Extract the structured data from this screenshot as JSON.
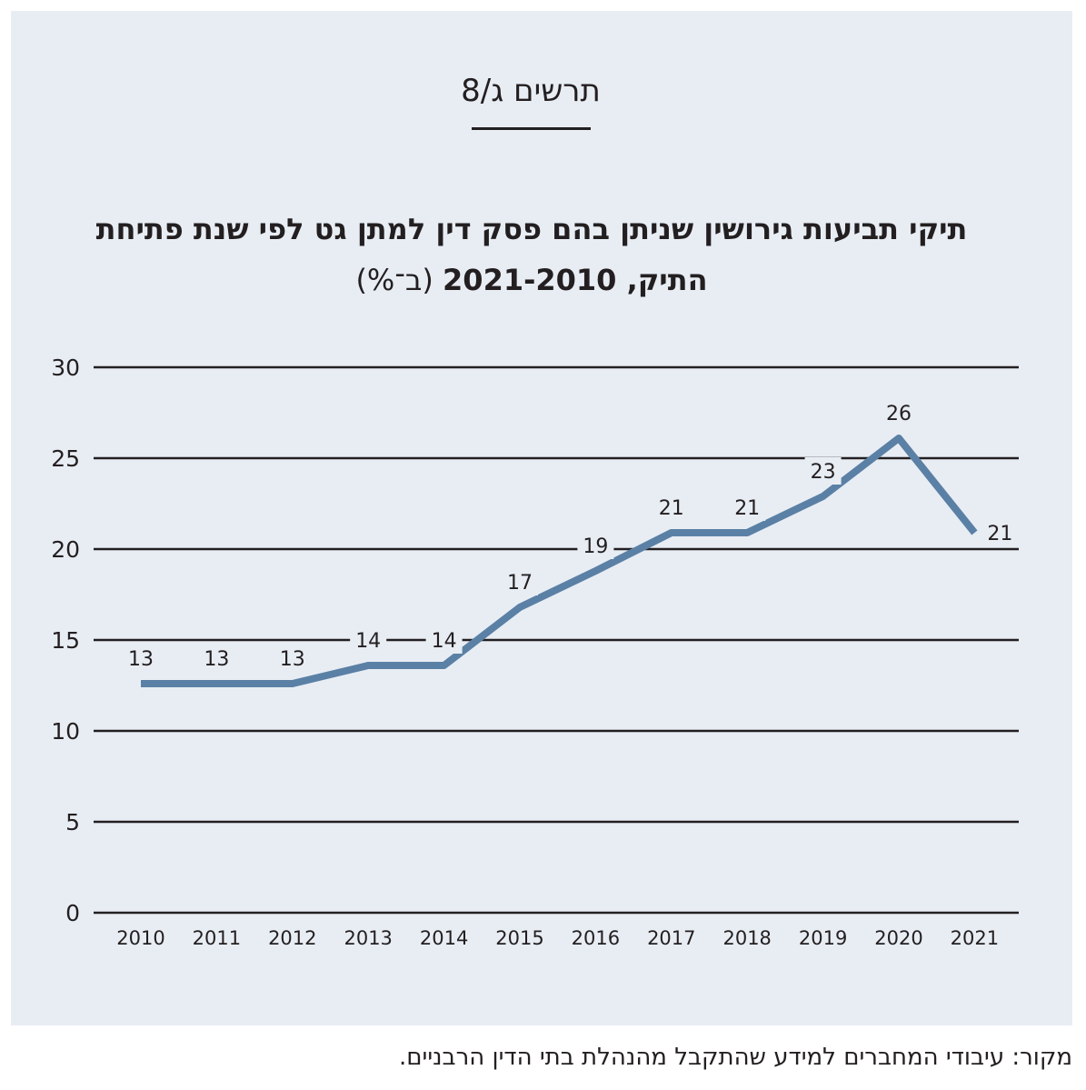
{
  "figure": {
    "label": "תרשים ג/8",
    "title_line1": "תיקי תביעות גירושין שניתן בהם פסק דין למתן גט לפי שנת פתיחת",
    "title_line2_bold": "התיק, 2021-2010",
    "title_line2_unit": "(ב־%)",
    "source": "מקור: עיבודי המחברים למידע שהתקבל מהנהלת בתי הדין הרבניים."
  },
  "chart_data": {
    "type": "line",
    "title": "תיקי תביעות גירושין שניתן בהם פסק דין למתן גט לפי שנת פתיחת התיק, 2021-2010 (ב־%)",
    "xlabel": "",
    "ylabel": "",
    "categories": [
      "2010",
      "2011",
      "2012",
      "2013",
      "2014",
      "2015",
      "2016",
      "2017",
      "2018",
      "2019",
      "2020",
      "2021"
    ],
    "values": [
      12.6,
      12.6,
      12.6,
      13.6,
      13.6,
      16.8,
      18.8,
      20.9,
      20.9,
      22.9,
      26.1,
      20.9
    ],
    "labels": [
      "13",
      "13",
      "13",
      "14",
      "14",
      "17",
      "19",
      "21",
      "21",
      "23",
      "26",
      "21"
    ],
    "yticks": [
      "0",
      "5",
      "10",
      "15",
      "20",
      "25",
      "30"
    ],
    "ylim": [
      0,
      30
    ],
    "grid": true,
    "line_color": "#5b80a5",
    "grid_color": "#231f20"
  }
}
